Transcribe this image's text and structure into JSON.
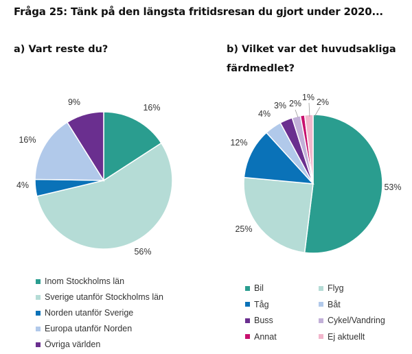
{
  "header": {
    "title": "Fråga 25: Tänk på den längsta fritidsresan du gjort under 2020...",
    "subtitle_a": "a) Vart reste du?",
    "subtitle_b": "b) Vilket var det huvudsakliga färdmedlet?"
  },
  "chart_data": [
    {
      "type": "pie",
      "title": "a) Vart reste du?",
      "legend_position": "bottom",
      "slices": [
        {
          "label": "Inom Stockholms län",
          "value": 16,
          "value_label": "16%",
          "color": "#2a9d8f"
        },
        {
          "label": "Sverige utanför Stockholms län",
          "value": 56,
          "value_label": "56%",
          "color": "#b5dcd6"
        },
        {
          "label": "Norden utanför Sverige",
          "value": 4,
          "value_label": "4%",
          "color": "#0a72b8"
        },
        {
          "label": "Europa utanför Norden",
          "value": 16,
          "value_label": "16%",
          "color": "#b1c9ea"
        },
        {
          "label": "Övriga världen",
          "value": 9,
          "value_label": "9%",
          "color": "#6a2f8f"
        }
      ]
    },
    {
      "type": "pie",
      "title": "b) Vilket var det huvudsakliga färdmedlet?",
      "legend_position": "bottom",
      "slices": [
        {
          "label": "Bil",
          "value": 53,
          "value_label": "53%",
          "color": "#2a9d8f"
        },
        {
          "label": "Flyg",
          "value": 25,
          "value_label": "25%",
          "color": "#b5dcd6"
        },
        {
          "label": "Tåg",
          "value": 12,
          "value_label": "12%",
          "color": "#0a72b8"
        },
        {
          "label": "Båt",
          "value": 4,
          "value_label": "4%",
          "color": "#b1c9ea"
        },
        {
          "label": "Buss",
          "value": 3,
          "value_label": "3%",
          "color": "#6a2f8f"
        },
        {
          "label": "Cykel/Vandring",
          "value": 2,
          "value_label": "2%",
          "color": "#c2b0d8"
        },
        {
          "label": "Annat",
          "value": 1,
          "value_label": "1%",
          "color": "#c8106e"
        },
        {
          "label": "Ej aktuellt",
          "value": 2,
          "value_label": "2%",
          "color": "#f2b6cc"
        }
      ]
    }
  ]
}
